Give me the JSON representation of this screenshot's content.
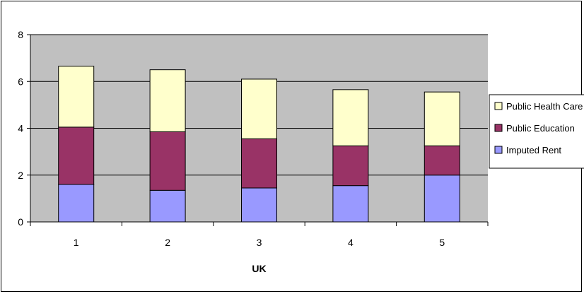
{
  "chart_data": {
    "type": "bar",
    "stacked": true,
    "title": "",
    "xlabel": "UK",
    "ylabel": "",
    "categories": [
      "1",
      "2",
      "3",
      "4",
      "5"
    ],
    "ylim": [
      0,
      8
    ],
    "yticks": [
      "0",
      "2",
      "4",
      "6",
      "8"
    ],
    "grid": true,
    "legend_position": "right",
    "series": [
      {
        "name": "Imputed Rent",
        "color": "#9999ff",
        "values": [
          1.6,
          1.35,
          1.45,
          1.55,
          2.0
        ]
      },
      {
        "name": "Public Education",
        "color": "#993366",
        "values": [
          2.45,
          2.5,
          2.1,
          1.7,
          1.25
        ]
      },
      {
        "name": "Public Health Care",
        "color": "#ffffcc",
        "values": [
          2.6,
          2.65,
          2.55,
          2.4,
          2.3
        ]
      }
    ],
    "legend_order": [
      "Public Health Care",
      "Public Education",
      "Imputed Rent"
    ],
    "plot_background": "#c0c0c0"
  }
}
